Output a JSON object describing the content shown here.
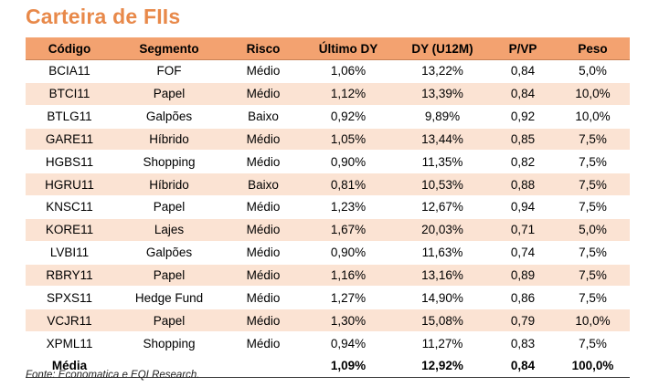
{
  "title": "Carteira de FIIs",
  "colors": {
    "accent": "#e8894a",
    "header_bg": "#f3a270",
    "row_alt_bg": "#fbe3d3"
  },
  "table": {
    "headers": [
      "Código",
      "Segmento",
      "Risco",
      "Último DY",
      "DY (U12M)",
      "P/VP",
      "Peso"
    ],
    "rows": [
      [
        "BCIA11",
        "FOF",
        "Médio",
        "1,06%",
        "13,22%",
        "0,84",
        "5,0%"
      ],
      [
        "BTCI11",
        "Papel",
        "Médio",
        "1,12%",
        "13,39%",
        "0,84",
        "10,0%"
      ],
      [
        "BTLG11",
        "Galpões",
        "Baixo",
        "0,92%",
        "9,89%",
        "0,92",
        "10,0%"
      ],
      [
        "GARE11",
        "Híbrido",
        "Médio",
        "1,05%",
        "13,44%",
        "0,85",
        "7,5%"
      ],
      [
        "HGBS11",
        "Shopping",
        "Médio",
        "0,90%",
        "11,35%",
        "0,82",
        "7,5%"
      ],
      [
        "HGRU11",
        "Híbrido",
        "Baixo",
        "0,81%",
        "10,53%",
        "0,88",
        "7,5%"
      ],
      [
        "KNSC11",
        "Papel",
        "Médio",
        "1,23%",
        "12,67%",
        "0,94",
        "7,5%"
      ],
      [
        "KORE11",
        "Lajes",
        "Médio",
        "1,67%",
        "20,03%",
        "0,71",
        "5,0%"
      ],
      [
        "LVBI11",
        "Galpões",
        "Médio",
        "0,90%",
        "11,63%",
        "0,74",
        "7,5%"
      ],
      [
        "RBRY11",
        "Papel",
        "Médio",
        "1,16%",
        "13,16%",
        "0,89",
        "7,5%"
      ],
      [
        "SPXS11",
        "Hedge Fund",
        "Médio",
        "1,27%",
        "14,90%",
        "0,86",
        "7,5%"
      ],
      [
        "VCJR11",
        "Papel",
        "Médio",
        "1,30%",
        "15,08%",
        "0,79",
        "10,0%"
      ],
      [
        "XPML11",
        "Shopping",
        "Médio",
        "0,94%",
        "11,27%",
        "0,83",
        "7,5%"
      ]
    ],
    "footer": [
      "Média",
      "",
      "",
      "1,09%",
      "12,92%",
      "0,84",
      "100,0%"
    ]
  },
  "source": "Fonte:  Economatica e EQI Research."
}
